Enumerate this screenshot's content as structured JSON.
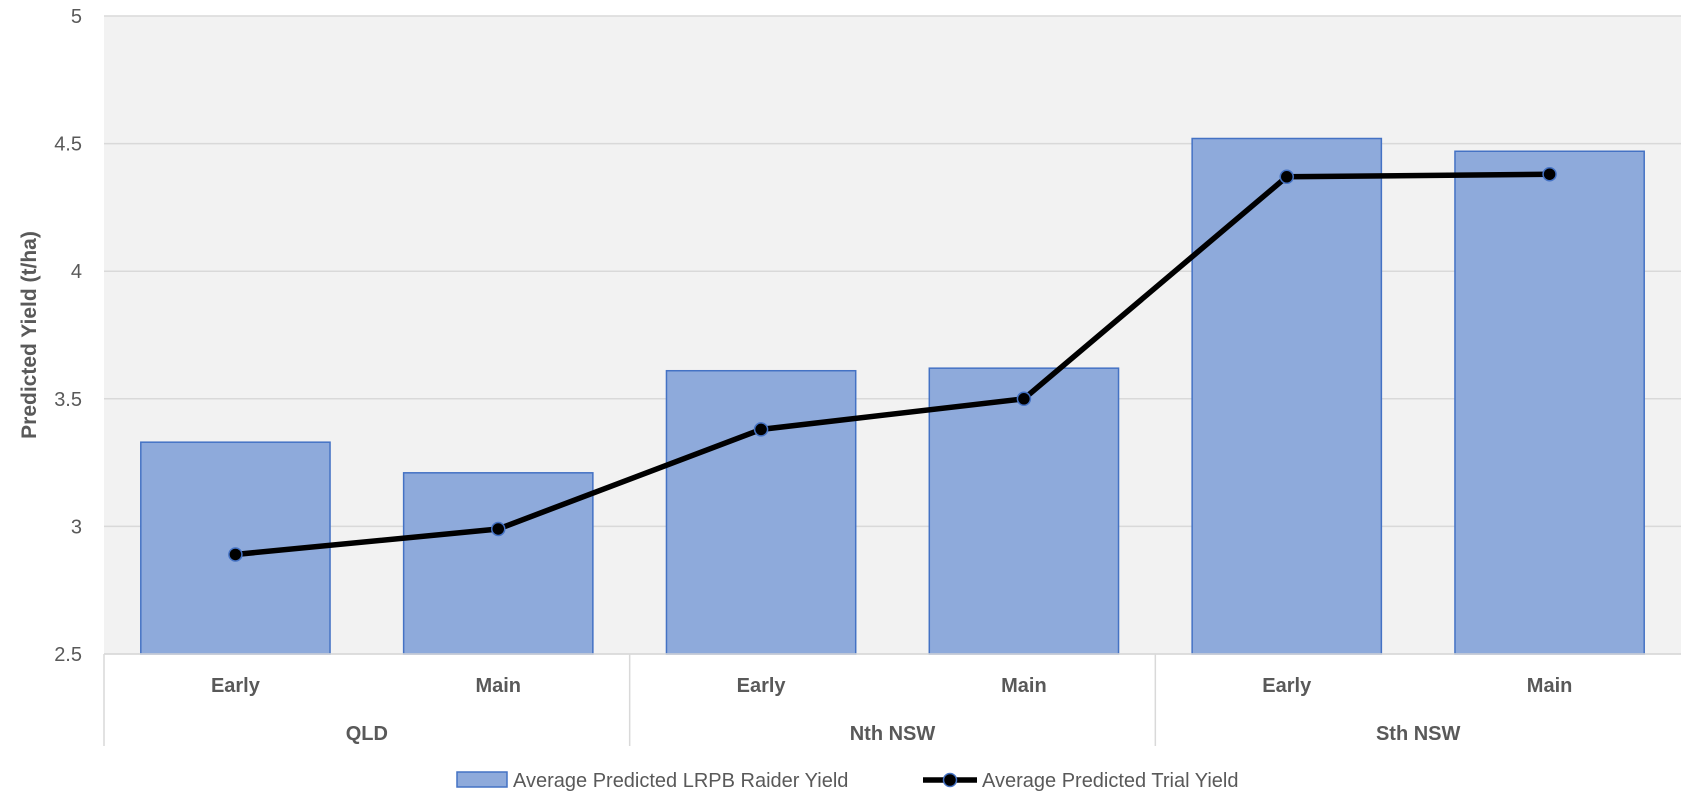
{
  "chart_data": {
    "type": "bar",
    "title": "",
    "ylabel": "Predicted Yield (t/ha)",
    "xlabel": "",
    "ylim": [
      2.5,
      5
    ],
    "yticks": [
      "2.5",
      "3",
      "3.5",
      "4",
      "4.5",
      "5"
    ],
    "grid": true,
    "legend_position": "bottom",
    "groups": [
      {
        "label": "QLD",
        "categories": [
          "Early",
          "Main"
        ]
      },
      {
        "label": "Nth NSW",
        "categories": [
          "Early",
          "Main"
        ]
      },
      {
        "label": "Sth NSW",
        "categories": [
          "Early",
          "Main"
        ]
      }
    ],
    "categories": [
      "Early",
      "Main",
      "Early",
      "Main",
      "Early",
      "Main"
    ],
    "series": [
      {
        "name": "Average Predicted LRPB Raider Yield",
        "type": "bar",
        "color": "#8eaadb",
        "border": "#4472c4",
        "values": [
          3.33,
          3.21,
          3.61,
          3.62,
          4.52,
          4.47
        ]
      },
      {
        "name": "Average Predicted Trial Yield",
        "type": "line",
        "color": "#000000",
        "marker_stroke": "#4472c4",
        "values": [
          2.89,
          2.99,
          3.38,
          3.5,
          4.37,
          4.38
        ]
      }
    ],
    "plot_background": "#f2f2f2"
  }
}
